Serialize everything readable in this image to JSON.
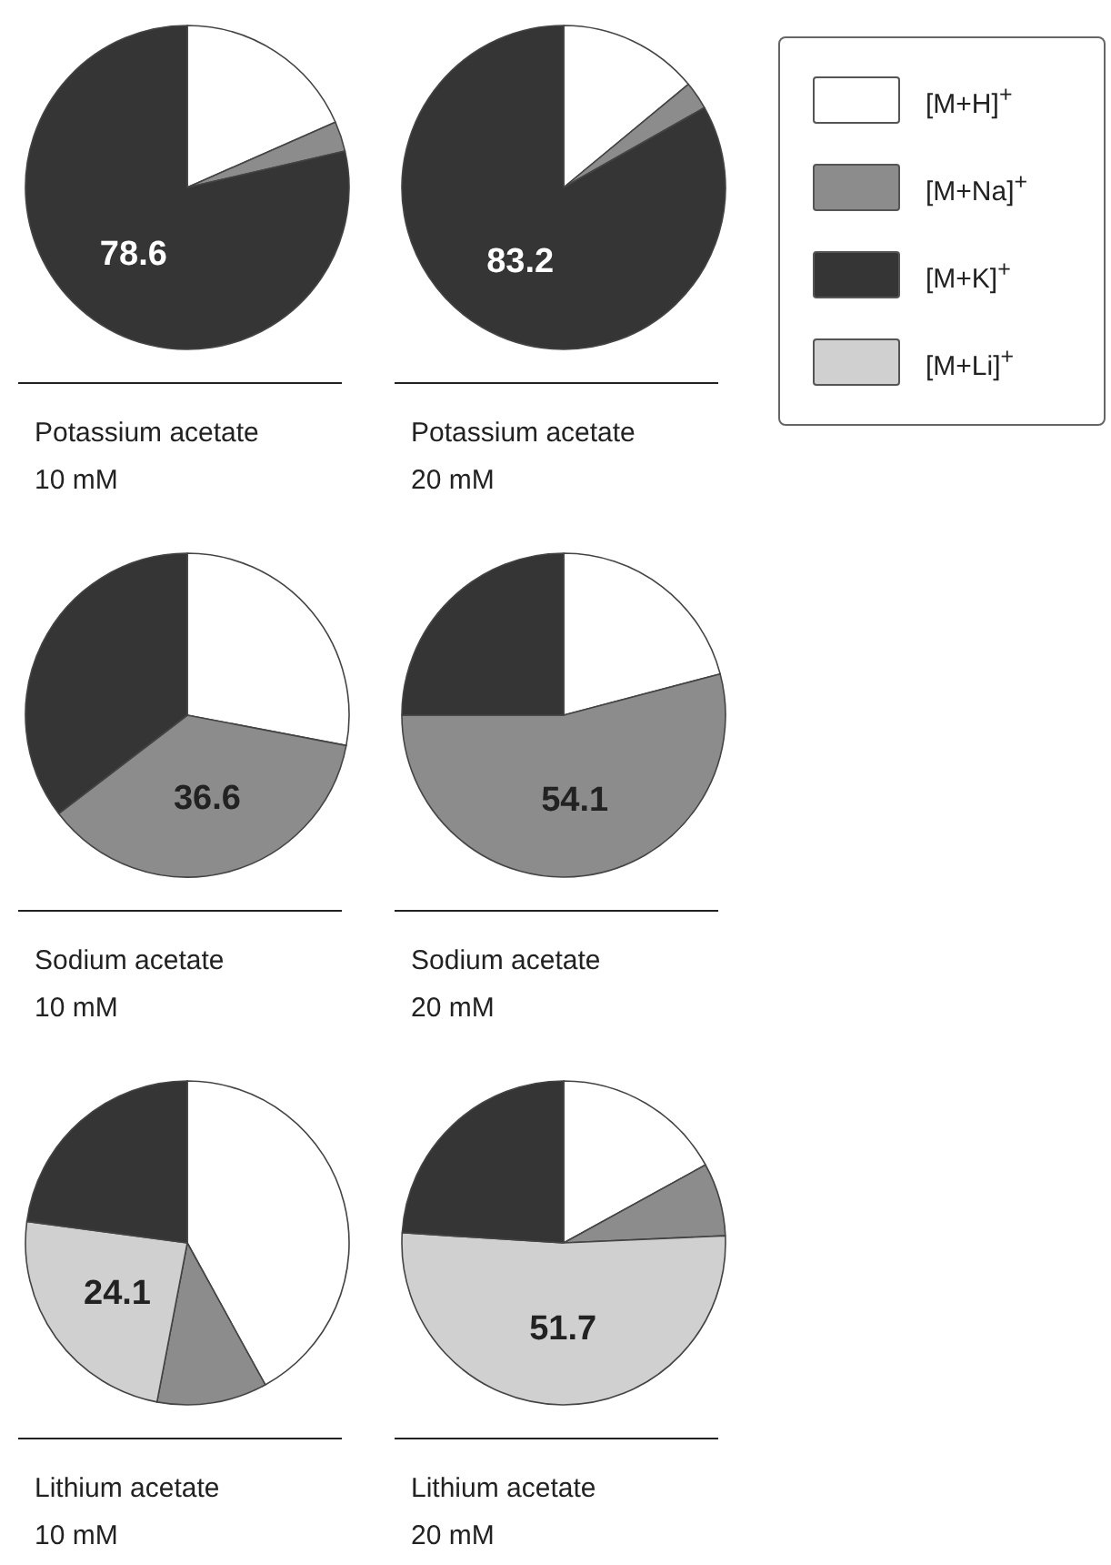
{
  "chart_data": [
    {
      "type": "pie",
      "title": "Potassium acetate\n10 mM",
      "values": [
        18.4,
        3.0,
        78.6
      ],
      "colors": [
        "#ffffff",
        "#8c8c8c",
        "#353535"
      ],
      "value_labels": [
        null,
        null,
        "78.6"
      ]
    },
    {
      "type": "pie",
      "title": "Potassium acetate\n20 mM",
      "values": [
        14.0,
        2.8,
        83.2
      ],
      "colors": [
        "#ffffff",
        "#8c8c8c",
        "#353535"
      ],
      "value_labels": [
        null,
        null,
        "83.2"
      ]
    },
    {
      "type": "other",
      "categories": [
        "[M+H]$^{+}$",
        "[M+Na]$^{+}$",
        "[M+K]$^{+}$",
        "[M+Li]$^{+}$"
      ],
      "colors": [
        "#ffffff",
        "#8c8c8c",
        "#353535",
        "#d0d0d0"
      ]
    },
    {
      "type": "pie",
      "title": "Sodium acetate\n10 mM",
      "values": [
        28.0,
        36.6,
        35.4
      ],
      "colors": [
        "#ffffff",
        "#8c8c8c",
        "#353535"
      ],
      "value_labels": [
        null,
        "36.6",
        null
      ]
    },
    {
      "type": "pie",
      "title": "Sodium acetate\n20 mM",
      "values": [
        20.9,
        54.1,
        25.0
      ],
      "colors": [
        "#ffffff",
        "#8c8c8c",
        "#353535"
      ],
      "value_labels": [
        null,
        "54.1",
        null
      ]
    },
    {
      "type": "pie",
      "title": "Lithium acetate\n10 mM",
      "values": [
        42.0,
        11.0,
        24.1,
        22.9
      ],
      "colors": [
        "#ffffff",
        "#8c8c8c",
        "#d0d0d0",
        "#353535"
      ],
      "value_labels": [
        null,
        null,
        "24.1",
        null
      ]
    },
    {
      "type": "pie",
      "title": "Lithium acetate\n20 mM",
      "values": [
        17.0,
        7.3,
        51.7,
        24.0
      ],
      "colors": [
        "#ffffff",
        "#8c8c8c",
        "#d0d0d0",
        "#353535"
      ],
      "value_labels": [
        null,
        null,
        "51.7",
        null
      ]
    }
  ]
}
